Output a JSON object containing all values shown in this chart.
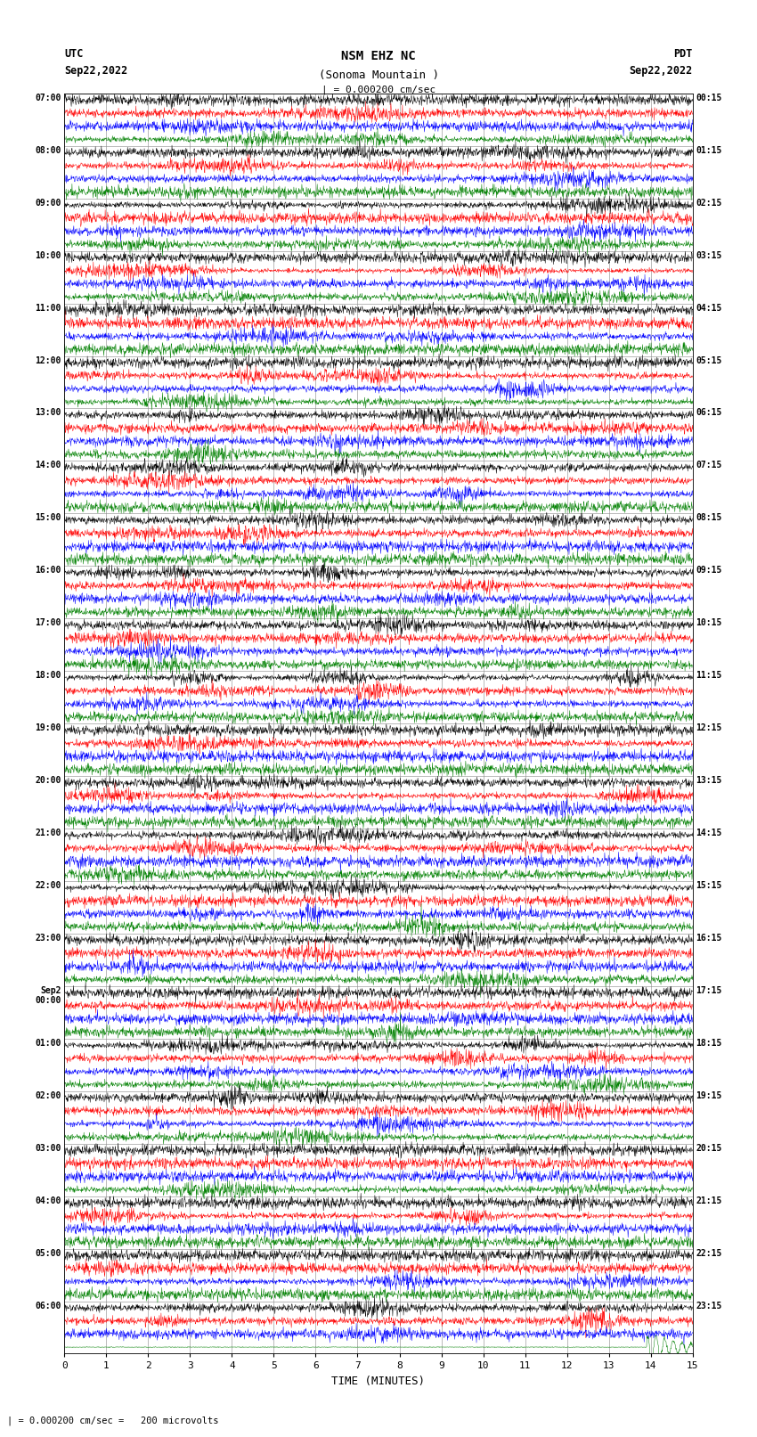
{
  "title_line1": "NSM EHZ NC",
  "title_line2": "(Sonoma Mountain )",
  "scale_text": "| = 0.000200 cm/sec",
  "bottom_text": "| = 0.000200 cm/sec =   200 microvolts",
  "utc_label": "UTC",
  "utc_date": "Sep22,2022",
  "pdt_label": "PDT",
  "pdt_date": "Sep22,2022",
  "xlabel": "TIME (MINUTES)",
  "left_times": [
    "07:00",
    "08:00",
    "09:00",
    "10:00",
    "11:00",
    "12:00",
    "13:00",
    "14:00",
    "15:00",
    "16:00",
    "17:00",
    "18:00",
    "19:00",
    "20:00",
    "21:00",
    "22:00",
    "23:00",
    "Sep2\n00:00",
    "01:00",
    "02:00",
    "03:00",
    "04:00",
    "05:00",
    "06:00"
  ],
  "right_times": [
    "00:15",
    "01:15",
    "02:15",
    "03:15",
    "04:15",
    "05:15",
    "06:15",
    "07:15",
    "08:15",
    "09:15",
    "10:15",
    "11:15",
    "12:15",
    "13:15",
    "14:15",
    "15:15",
    "16:15",
    "17:15",
    "18:15",
    "19:15",
    "20:15",
    "21:15",
    "22:15",
    "23:15"
  ],
  "n_rows": 24,
  "traces_per_row": 4,
  "colors": [
    "black",
    "red",
    "blue",
    "green"
  ],
  "bg_color": "#ffffff",
  "grid_color": "#aaaaaa",
  "xmin": 0,
  "xmax": 15,
  "xticks": [
    0,
    1,
    2,
    3,
    4,
    5,
    6,
    7,
    8,
    9,
    10,
    11,
    12,
    13,
    14,
    15
  ]
}
